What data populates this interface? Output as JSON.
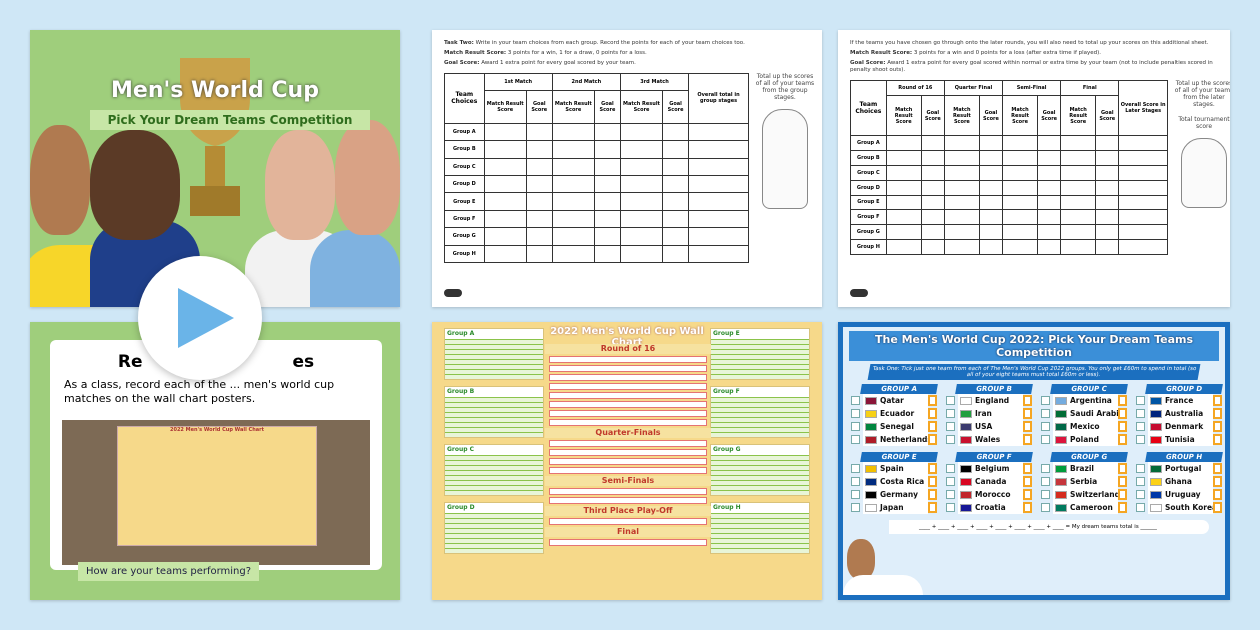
{
  "slide1": {
    "title": "Men's World Cup",
    "subtitle": "Pick Your Dream Teams Competition"
  },
  "slide2": {
    "heading": "Record the Scores",
    "heading_visible_left": "Re",
    "heading_visible_right": "es",
    "body": "As a class, record each of the ... men's world cup matches on the wall chart posters.",
    "badge": "How are your teams performing?",
    "mini_title": "2022 Men's World Cup Wall Chart"
  },
  "play": {
    "icon": "play-icon",
    "color": "#6ab4e8"
  },
  "sheet1": {
    "line1_label": "Task Two:",
    "line1": "Write in your team choices from each group. Record the points for each of your team choices too.",
    "line2_label": "Match Result Score:",
    "line2": "3 points for a win, 1 for a draw, 0 points for a loss.",
    "line3_label": "Goal Score:",
    "line3": "Award 1 extra point for every goal scored by your team.",
    "col_team": "Team Choices",
    "stages": [
      "1st Match",
      "2nd Match",
      "3rd Match"
    ],
    "sub": [
      "Match Result Score",
      "Goal Score"
    ],
    "overall": "Overall total in group stages",
    "rows": [
      "Group A",
      "Group B",
      "Group C",
      "Group D",
      "Group E",
      "Group F",
      "Group G",
      "Group H"
    ],
    "side": "Total up the scores of all of your teams from the group stages."
  },
  "sheet2": {
    "line1": "If the teams you have chosen go through onto the later rounds, you will also need to total up your scores on this additional sheet.",
    "line2_label": "Match Result Score:",
    "line2": "3 points for a win and 0 points for a loss (after extra time if played).",
    "line3_label": "Goal Score:",
    "line3": "Award 1 extra point for every goal scored within normal or extra time by your team (not to include penalties scored in penalty shoot outs).",
    "col_team": "Team Choices",
    "stages": [
      "Round of 16",
      "Quarter Final",
      "Semi-Final",
      "Final"
    ],
    "sub": [
      "Match Result Score",
      "Goal Score"
    ],
    "overall": "Overall Score in Later Stages",
    "rows": [
      "Group A",
      "Group B",
      "Group C",
      "Group D",
      "Group E",
      "Group F",
      "Group G",
      "Group H"
    ],
    "side": "Total up the scores of all of your teams from the later stages.",
    "side2": "Total tournament score"
  },
  "wallchart": {
    "title": "2022 Men's World Cup Wall Chart",
    "stages": [
      "Round of 16",
      "Quarter-Finals",
      "Semi-Finals",
      "Third Place Play-Off",
      "Final"
    ],
    "left_groups": [
      "Group A",
      "Group B",
      "Group C",
      "Group D"
    ],
    "right_groups": [
      "Group E",
      "Group F",
      "Group G",
      "Group H"
    ]
  },
  "competition": {
    "title": "The Men's World Cup 2022: Pick Your Dream Teams Competition",
    "task": "Task One: Tick just one team from each of The Men's World Cup 2022 groups. You only get £60m to spend in total (so all of your eight teams must total £60m or less).",
    "total_line": "____ + ____ + ____ + ____ + ____ + ____ + ____ + ____ = My dream teams total is ______",
    "groups": [
      {
        "name": "GROUP A",
        "teams": [
          "Qatar",
          "Ecuador",
          "Senegal",
          "Netherlands"
        ]
      },
      {
        "name": "GROUP B",
        "teams": [
          "England",
          "Iran",
          "USA",
          "Wales"
        ]
      },
      {
        "name": "GROUP C",
        "teams": [
          "Argentina",
          "Saudi Arabia",
          "Mexico",
          "Poland"
        ]
      },
      {
        "name": "GROUP D",
        "teams": [
          "France",
          "Australia",
          "Denmark",
          "Tunisia"
        ]
      },
      {
        "name": "GROUP E",
        "teams": [
          "Spain",
          "Costa Rica",
          "Germany",
          "Japan"
        ]
      },
      {
        "name": "GROUP F",
        "teams": [
          "Belgium",
          "Canada",
          "Morocco",
          "Croatia"
        ]
      },
      {
        "name": "GROUP G",
        "teams": [
          "Brazil",
          "Serbia",
          "Switzerland",
          "Cameroon"
        ]
      },
      {
        "name": "GROUP H",
        "teams": [
          "Portugal",
          "Ghana",
          "Uruguay",
          "South Korea"
        ]
      }
    ]
  },
  "colors": {
    "background": "#cfe7f6",
    "slide_green": "#9fce7c",
    "wallchart_yellow": "#f6d98a",
    "competition_blue": "#1b6fbf",
    "price_orange": "#f5a623"
  }
}
